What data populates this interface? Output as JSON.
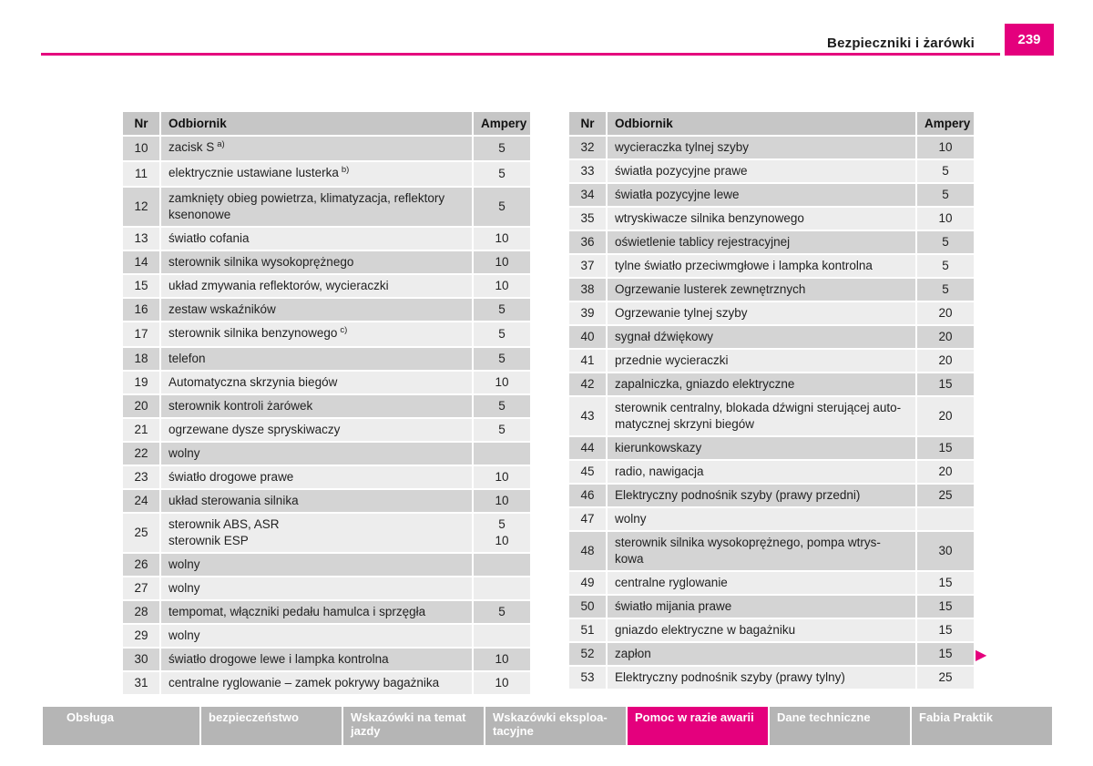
{
  "header": {
    "title": "Bezpieczniki i żarówki",
    "page_number": "239"
  },
  "colors": {
    "accent_magenta": "#e4007d",
    "nav_gray": "#b5b5b5",
    "table_header_gray": "#c6c6c6",
    "row_dark": "#d4d4d4",
    "row_light": "#ededed"
  },
  "icons": {
    "next_page_arrow": "▶"
  },
  "tables": [
    {
      "columns": [
        "Nr",
        "Odbiornik",
        "Ampery"
      ],
      "rows": [
        {
          "nr": "10",
          "odbiornik": "zacisk S",
          "sup": "a)",
          "ampery": "5"
        },
        {
          "nr": "11",
          "odbiornik": "elektrycznie ustawiane lusterka",
          "sup": "b)",
          "ampery": "5"
        },
        {
          "nr": "12",
          "odbiornik": "zamknięty obieg powietrza, klimatyzacja, reflektory\nksenonowe",
          "ampery": "5"
        },
        {
          "nr": "13",
          "odbiornik": "światło cofania",
          "ampery": "10"
        },
        {
          "nr": "14",
          "odbiornik": "sterownik silnika wysokoprężnego",
          "ampery": "10"
        },
        {
          "nr": "15",
          "odbiornik": "układ zmywania reflektorów, wycieraczki",
          "ampery": "10"
        },
        {
          "nr": "16",
          "odbiornik": "zestaw wskaźników",
          "ampery": "5"
        },
        {
          "nr": "17",
          "odbiornik": "sterownik silnika benzynowego",
          "sup": "c)",
          "ampery": "5"
        },
        {
          "nr": "18",
          "odbiornik": "telefon",
          "ampery": "5"
        },
        {
          "nr": "19",
          "odbiornik": "Automatyczna skrzynia biegów",
          "ampery": "10"
        },
        {
          "nr": "20",
          "odbiornik": "sterownik kontroli żarówek",
          "ampery": "5"
        },
        {
          "nr": "21",
          "odbiornik": "ogrzewane dysze spryskiwaczy",
          "ampery": "5"
        },
        {
          "nr": "22",
          "odbiornik": "wolny",
          "ampery": ""
        },
        {
          "nr": "23",
          "odbiornik": "światło drogowe prawe",
          "ampery": "10"
        },
        {
          "nr": "24",
          "odbiornik": "układ sterowania silnika",
          "ampery": "10"
        },
        {
          "nr": "25",
          "odbiornik": "sterownik ABS, ASR\nsterownik ESP",
          "ampery": "5\n10"
        },
        {
          "nr": "26",
          "odbiornik": "wolny",
          "ampery": ""
        },
        {
          "nr": "27",
          "odbiornik": "wolny",
          "ampery": ""
        },
        {
          "nr": "28",
          "odbiornik": "tempomat, włączniki pedału hamulca i sprzęgła",
          "ampery": "5"
        },
        {
          "nr": "29",
          "odbiornik": "wolny",
          "ampery": ""
        },
        {
          "nr": "30",
          "odbiornik": "światło drogowe lewe i lampka kontrolna",
          "ampery": "10"
        },
        {
          "nr": "31",
          "odbiornik": "centralne ryglowanie – zamek pokrywy bagażnika",
          "ampery": "10"
        }
      ]
    },
    {
      "columns": [
        "Nr",
        "Odbiornik",
        "Ampery"
      ],
      "rows": [
        {
          "nr": "32",
          "odbiornik": "wycieraczka tylnej szyby",
          "ampery": "10"
        },
        {
          "nr": "33",
          "odbiornik": "światła pozycyjne prawe",
          "ampery": "5"
        },
        {
          "nr": "34",
          "odbiornik": "światła pozycyjne lewe",
          "ampery": "5"
        },
        {
          "nr": "35",
          "odbiornik": "wtryskiwacze silnika benzynowego",
          "ampery": "10"
        },
        {
          "nr": "36",
          "odbiornik": "oświetlenie tablicy rejestracyjnej",
          "ampery": "5"
        },
        {
          "nr": "37",
          "odbiornik": "tylne światło przeciwmgłowe i lampka kontrolna",
          "ampery": "5"
        },
        {
          "nr": "38",
          "odbiornik": "Ogrzewanie lusterek zewnętrznych",
          "ampery": "5"
        },
        {
          "nr": "39",
          "odbiornik": "Ogrzewanie tylnej szyby",
          "ampery": "20"
        },
        {
          "nr": "40",
          "odbiornik": "sygnał dźwiękowy",
          "ampery": "20"
        },
        {
          "nr": "41",
          "odbiornik": "przednie wycieraczki",
          "ampery": "20"
        },
        {
          "nr": "42",
          "odbiornik": "zapalniczka, gniazdo elektryczne",
          "ampery": "15"
        },
        {
          "nr": "43",
          "odbiornik": "sterownik centralny, blokada dźwigni sterującej auto-\nmatycznej skrzyni biegów",
          "ampery": "20"
        },
        {
          "nr": "44",
          "odbiornik": "kierunkowskazy",
          "ampery": "15"
        },
        {
          "nr": "45",
          "odbiornik": "radio, nawigacja",
          "ampery": "20"
        },
        {
          "nr": "46",
          "odbiornik": "Elektryczny podnośnik szyby (prawy przedni)",
          "ampery": "25"
        },
        {
          "nr": "47",
          "odbiornik": "wolny",
          "ampery": ""
        },
        {
          "nr": "48",
          "odbiornik": "sterownik silnika wysokoprężnego, pompa wtrys-\nkowa",
          "ampery": "30"
        },
        {
          "nr": "49",
          "odbiornik": "centralne ryglowanie",
          "ampery": "15"
        },
        {
          "nr": "50",
          "odbiornik": "światło mijania prawe",
          "ampery": "15"
        },
        {
          "nr": "51",
          "odbiornik": "gniazdo elektryczne w bagażniku",
          "ampery": "15"
        },
        {
          "nr": "52",
          "odbiornik": "zapłon",
          "ampery": "15"
        },
        {
          "nr": "53",
          "odbiornik": "Elektryczny podnośnik szyby (prawy tylny)",
          "ampery": "25"
        }
      ]
    }
  ],
  "footer_nav": {
    "items": [
      {
        "name": "obsluga",
        "label": "Obsługa",
        "active": false
      },
      {
        "name": "bezpieczenstwo",
        "label": "bezpieczeństwo",
        "active": false
      },
      {
        "name": "wskazowki-na-temat-jazdy",
        "label": "Wskazówki na temat\njazdy",
        "active": false
      },
      {
        "name": "wskazowki-eksploatacyjne",
        "label": "Wskazówki eksploa-\ntacyjne",
        "active": false
      },
      {
        "name": "pomoc-w-razie-awarii",
        "label": "Pomoc w razie awarii",
        "active": true
      },
      {
        "name": "dane-techniczne",
        "label": "Dane techniczne",
        "active": false
      },
      {
        "name": "fabia-praktik",
        "label": "Fabia Praktik",
        "active": false
      }
    ]
  }
}
